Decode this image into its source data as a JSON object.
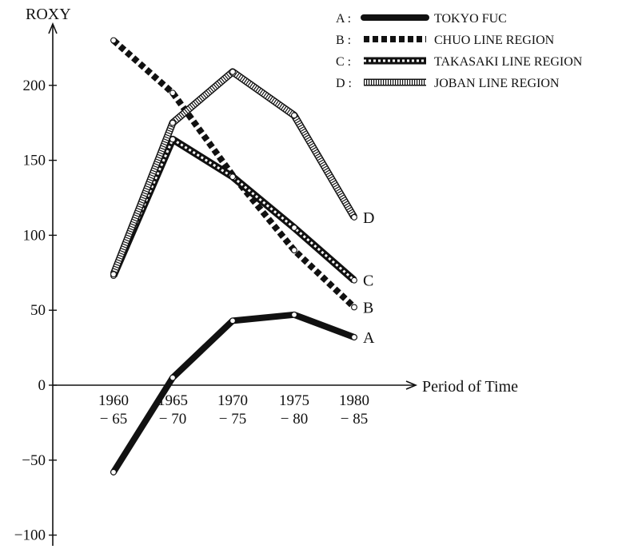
{
  "chart_data": {
    "type": "line",
    "ylabel": "ROXY",
    "xlabel": "Period of Time",
    "ylim": [
      -100,
      230
    ],
    "yticks": [
      -100,
      -50,
      0,
      50,
      100,
      150,
      200
    ],
    "ytick_labels": [
      "−100",
      "−50",
      "0",
      "50",
      "100",
      "150",
      "200"
    ],
    "categories": [
      {
        "top": "1960",
        "bottom": "− 65"
      },
      {
        "top": "1965",
        "bottom": "− 70"
      },
      {
        "top": "1970",
        "bottom": "− 75"
      },
      {
        "top": "1975",
        "bottom": "− 80"
      },
      {
        "top": "1980",
        "bottom": "− 85"
      }
    ],
    "series": [
      {
        "key": "A",
        "name": "TOKYO FUC",
        "style": "solid",
        "values": [
          -58,
          5,
          43,
          47,
          32
        ]
      },
      {
        "key": "B",
        "name": "CHUO LINE REGION",
        "style": "dashed",
        "values": [
          230,
          195,
          140,
          90,
          52
        ]
      },
      {
        "key": "C",
        "name": "TAKASAKI LINE REGION",
        "style": "dotted-band",
        "values": [
          73,
          164,
          139,
          105,
          70
        ]
      },
      {
        "key": "D",
        "name": "JOBAN LINE REGION",
        "style": "hatched-band",
        "values": [
          74,
          175,
          209,
          180,
          112
        ]
      }
    ],
    "legend_position": "top-right",
    "grid": false,
    "colors": {
      "ink": "#111111",
      "background": "#ffffff"
    }
  }
}
